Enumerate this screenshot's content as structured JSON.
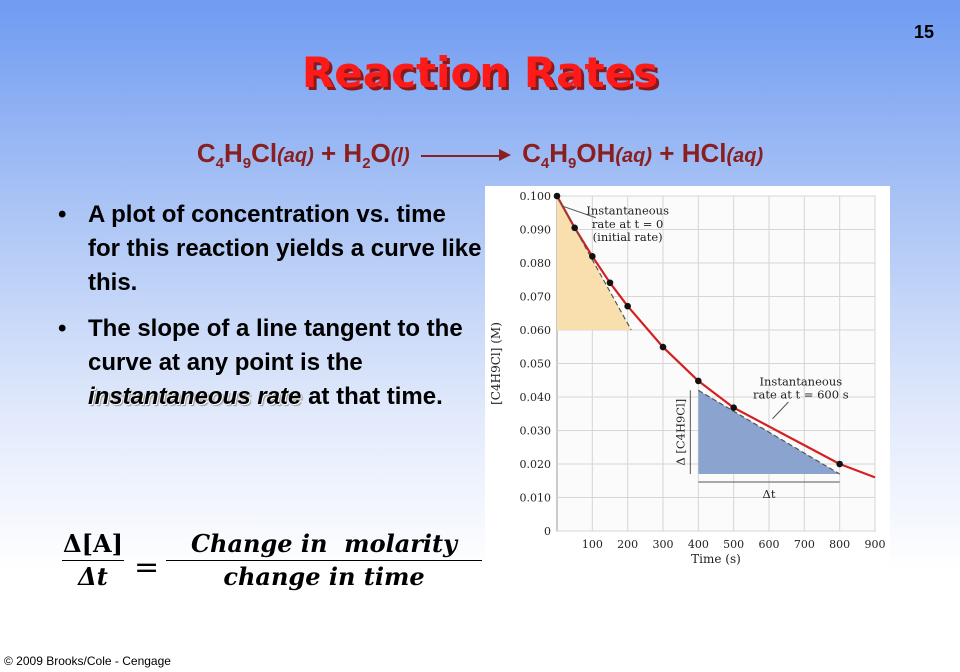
{
  "slide_number": "15",
  "title": "Reaction Rates",
  "equation": {
    "r1_pre": "C",
    "r1_s1": "4",
    "r1_m1": "H",
    "r1_s2": "9",
    "r1_post": "Cl",
    "r1_phase": "(aq)",
    "plus1": "+",
    "r2_pre": "H",
    "r2_s": "2",
    "r2_post": "O",
    "r2_phase": "(l)",
    "p1_pre": "C",
    "p1_s1": "4",
    "p1_m1": "H",
    "p1_s2": "9",
    "p1_post": "OH",
    "p1_phase": "(aq)",
    "plus2": "+",
    "p2": "HCl",
    "p2_phase": "(aq)"
  },
  "bullets": {
    "b1": "A plot of concentration vs. time for this reaction yields a curve like this.",
    "b2_before": "The slope of a line tangent to the curve at any point is the",
    "b2_em": "instantaneous rate",
    "b2_after": "at that time."
  },
  "rate_equation": {
    "lhs_num": "Δ[A]",
    "lhs_den": "Δt",
    "equals": "=",
    "rhs_num": "Change in  molarity",
    "rhs_den": "change in time"
  },
  "copyright": "© 2009 Brooks/Cole - Cengage",
  "colors": {
    "title": "#ff1a1a",
    "equation": "#8a1f1f",
    "curve": "#d42020",
    "initial_fill": "#f9dfad",
    "later_fill": "#8aa4cf"
  },
  "chart_data": {
    "type": "line",
    "xlabel": "Time (s)",
    "ylabel": "[C4H9Cl] (M)",
    "xlim": [
      0,
      900
    ],
    "ylim": [
      0,
      0.1
    ],
    "x_ticks": [
      100,
      200,
      300,
      400,
      500,
      600,
      700,
      800,
      900
    ],
    "y_ticks": [
      "0",
      "0.010",
      "0.020",
      "0.030",
      "0.040",
      "0.050",
      "0.060",
      "0.070",
      "0.080",
      "0.090",
      "0.100"
    ],
    "grid": true,
    "points": [
      {
        "x": 0,
        "y": 0.1
      },
      {
        "x": 50,
        "y": 0.0905
      },
      {
        "x": 100,
        "y": 0.082
      },
      {
        "x": 150,
        "y": 0.0741
      },
      {
        "x": 200,
        "y": 0.0671
      },
      {
        "x": 300,
        "y": 0.0549
      },
      {
        "x": 400,
        "y": 0.0448
      },
      {
        "x": 500,
        "y": 0.0368
      },
      {
        "x": 800,
        "y": 0.02
      }
    ],
    "curve_end": {
      "x": 900,
      "y": 0.016
    },
    "tangent_initial": {
      "x1": 0,
      "y1": 0.1,
      "x2": 210,
      "y2": 0.06
    },
    "tangent_600": {
      "x1": 400,
      "y1": 0.042,
      "x2": 800,
      "y2": 0.017
    },
    "annotations": {
      "initial_l1": "Instantaneous",
      "initial_l2": "rate at t = 0",
      "initial_l3": "(initial rate)",
      "t600_l1": "Instantaneous",
      "t600_l2": "rate at t = 600 s",
      "delta_conc": "Δ [C4H9Cl]",
      "delta_t": "Δt"
    }
  }
}
